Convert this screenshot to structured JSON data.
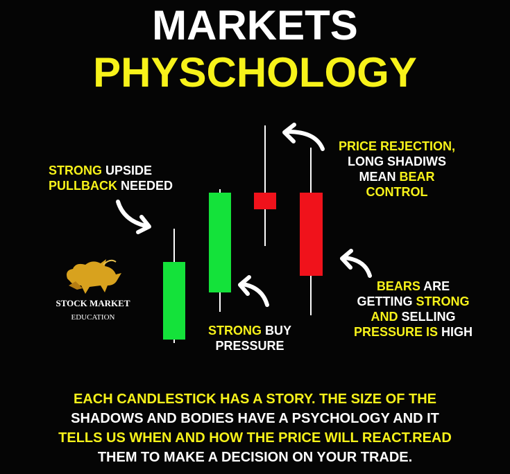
{
  "title": {
    "line1": "MARKETS",
    "line2": "PHYSCHOLOGY"
  },
  "labels": {
    "upside": {
      "line1_yellow": "STRONG",
      "line1_white": " UPSIDE",
      "line2_yellow": "PULLBACK",
      "line2_white": " NEEDED"
    },
    "rejection": {
      "line1": "PRICE REJECTION,",
      "line2": "LONG SHADIWS",
      "line3_white": "MEAN ",
      "line3_yellow": "BEAR",
      "line4": "CONTROL"
    },
    "buy": {
      "line1_yellow": "STRONG",
      "line1_white": " BUY",
      "line2": "PRESSURE"
    },
    "bears": {
      "line1_yellow": "BEARS",
      "line1_white": " ARE",
      "line2_white": "GETTING ",
      "line2_yellow": "STRONG",
      "line3_yellow": "AND",
      "line3_white": " SELLING",
      "line4_yellow": "PRESSURE IS",
      "line4_white": " HIGH"
    }
  },
  "logo": {
    "line1": "STOCK MARKET",
    "line2": "EDUCATION"
  },
  "footer": {
    "line1": "EACH CANDLESTICK HAS A STORY. THE SIZE OF THE",
    "line2": "SHADOWS AND BODIES HAVE A PSYCHOLOGY AND IT",
    "line3": "TELLS US WHEN AND HOW THE PRICE WILL REACT.READ",
    "line4": "THEM TO MAKE A DECISION ON YOUR TRADE."
  },
  "colors": {
    "yellow": "#f7f21a",
    "green": "#14e23a",
    "red": "#f0121b",
    "white": "#ffffff",
    "background": "#050505"
  }
}
